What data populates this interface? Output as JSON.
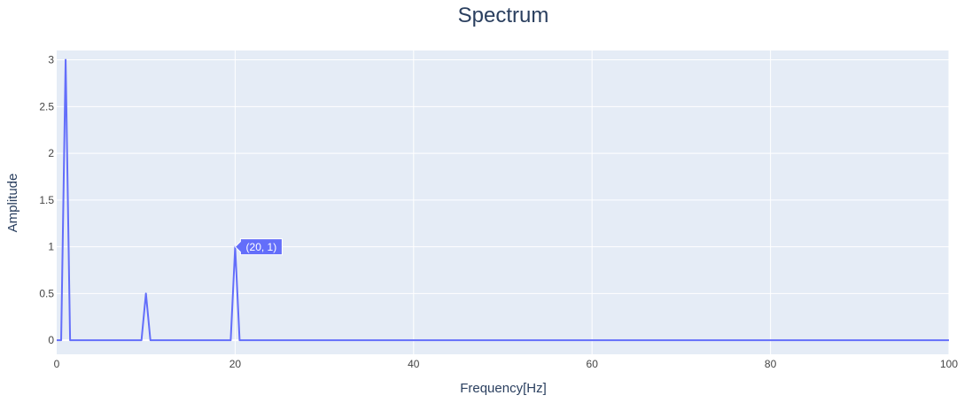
{
  "chart_data": {
    "type": "line",
    "title": "Spectrum",
    "xlabel": "Frequency[Hz]",
    "ylabel": "Amplitude",
    "xlim": [
      0,
      100
    ],
    "ylim": [
      -0.15,
      3.1
    ],
    "x_ticks": [
      0,
      20,
      40,
      60,
      80,
      100
    ],
    "x_tick_labels": [
      "0",
      "20",
      "40",
      "60",
      "80",
      "100"
    ],
    "y_ticks": [
      0,
      0.5,
      1,
      1.5,
      2,
      2.5,
      3
    ],
    "y_tick_labels": [
      "0",
      "0.5",
      "1",
      "1.5",
      "2",
      "2.5",
      "3"
    ],
    "grid": true,
    "series": [
      {
        "x": [
          0,
          0.5,
          1,
          1.5,
          9.5,
          10,
          10.5,
          19.5,
          20,
          20.5,
          100
        ],
        "y": [
          0,
          0,
          3,
          0,
          0,
          0.5,
          0,
          0,
          1,
          0,
          0
        ]
      }
    ],
    "annotation": {
      "label": "(20, 1)",
      "x": 20,
      "y": 1
    },
    "colors": {
      "plot_bg": "#e5ecf6",
      "grid": "#ffffff",
      "line": "#636efa",
      "text": "#2a3f5f",
      "tick_text": "#444444",
      "annotation_bg": "#636efa",
      "annotation_text": "#ffffff"
    }
  }
}
